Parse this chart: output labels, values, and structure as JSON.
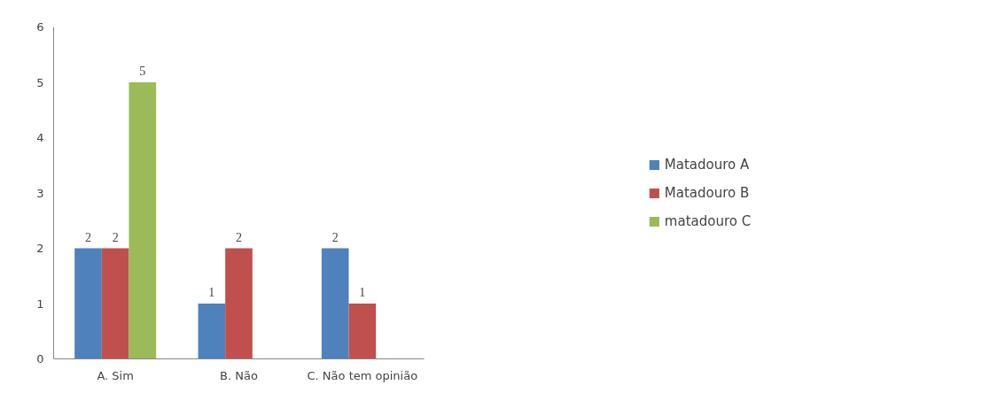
{
  "chart_data": {
    "type": "bar",
    "categories": [
      "A. Sim",
      "B. Não",
      "C. Não tem opinião"
    ],
    "series": [
      {
        "name": "Matadouro A",
        "color": "#4f81bd",
        "values": [
          2,
          1,
          2
        ]
      },
      {
        "name": "Matadouro B",
        "color": "#c0504d",
        "values": [
          2,
          2,
          1
        ]
      },
      {
        "name": "matadouro C",
        "color": "#9bbb59",
        "values": [
          5,
          null,
          null
        ]
      }
    ],
    "ylim": [
      0,
      6
    ],
    "yticks": [
      0,
      1,
      2,
      3,
      4,
      5,
      6
    ],
    "grid": false,
    "legend": "right",
    "data_labels": true
  }
}
